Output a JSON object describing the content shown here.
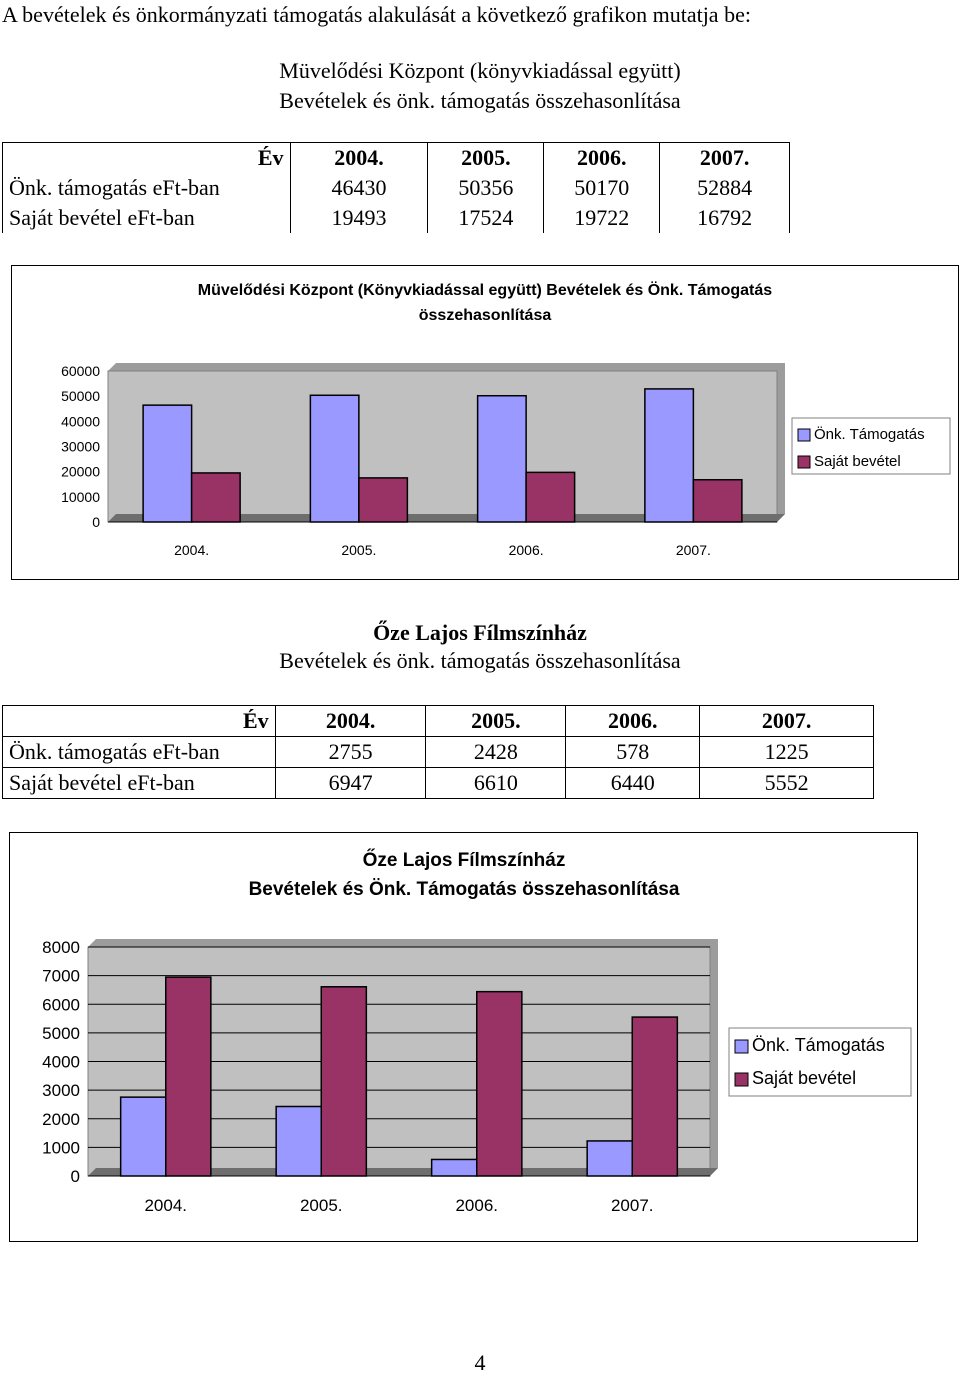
{
  "intro": "A bevételek és önkormányzati támogatás alakulását a következő grafikon mutatja be:",
  "section1": {
    "heading_line1": "Müvelődési Központ (könyvkiadással együtt)",
    "heading_line2": "Bevételek és önk. támogatás összehasonlítása",
    "table": {
      "header_label": "Év",
      "years": [
        "2004.",
        "2005.",
        "2006.",
        "2007."
      ],
      "rows": [
        {
          "label": "Önk. támogatás eFt-ban",
          "values": [
            "46430",
            "50356",
            "50170",
            "52884"
          ]
        },
        {
          "label": "Saját bevétel eFt-ban",
          "values": [
            "19493",
            "17524",
            "19722",
            "16792"
          ]
        }
      ]
    }
  },
  "section2": {
    "heading_line1": "Őze Lajos Fílmszínház",
    "heading_line2": "Bevételek és önk. támogatás összehasonlítása",
    "table": {
      "header_label": "Év",
      "years": [
        "2004.",
        "2005.",
        "2006.",
        "2007."
      ],
      "rows": [
        {
          "label": "Önk. támogatás eFt-ban",
          "values": [
            "2755",
            "2428",
            "578",
            "1225"
          ]
        },
        {
          "label": "Saját bevétel eFt-ban",
          "values": [
            "6947",
            "6610",
            "6440",
            "5552"
          ]
        }
      ]
    }
  },
  "chart_data": [
    {
      "type": "bar",
      "title": "Müvelődési Központ (Könyvkiadással együtt) Bevételek és Önk. Támogatás összehasonlítása",
      "title_lines": [
        "Müvelődési Központ (Könyvkiadással együtt) Bevételek és Önk. Támogatás",
        "összehasonlítása"
      ],
      "categories": [
        "2004.",
        "2005.",
        "2006.",
        "2007."
      ],
      "series": [
        {
          "name": "Önk. Támogatás",
          "values": [
            46430,
            50356,
            50170,
            52884
          ],
          "color": "#9999ff"
        },
        {
          "name": "Saját bevétel",
          "values": [
            19493,
            17524,
            19722,
            16792
          ],
          "color": "#993366"
        }
      ],
      "ylim": [
        0,
        60000
      ],
      "yticks": [
        "60000",
        "50000",
        "40000",
        "30000",
        "20000",
        "10000",
        "0"
      ],
      "grid": false,
      "plot_area_color": "#c0c0c0",
      "legend_position": "right"
    },
    {
      "type": "bar",
      "title": "Őze Lajos Fílmszínház Bevételek és Önk. Támogatás összehasonlítása",
      "title_lines": [
        "Őze Lajos Fílmszínház",
        "Bevételek és Önk. Támogatás összehasonlítása"
      ],
      "categories": [
        "2004.",
        "2005.",
        "2006.",
        "2007."
      ],
      "series": [
        {
          "name": "Önk. Támogatás",
          "values": [
            2755,
            2428,
            578,
            1225
          ],
          "color": "#9999ff"
        },
        {
          "name": "Saját bevétel",
          "values": [
            6947,
            6610,
            6440,
            5552
          ],
          "color": "#993366"
        }
      ],
      "ylim": [
        0,
        8000
      ],
      "yticks": [
        "8000",
        "7000",
        "6000",
        "5000",
        "4000",
        "3000",
        "2000",
        "1000",
        "0"
      ],
      "grid": true,
      "plot_area_color": "#c0c0c0",
      "legend_position": "right"
    }
  ],
  "page_number": "4"
}
